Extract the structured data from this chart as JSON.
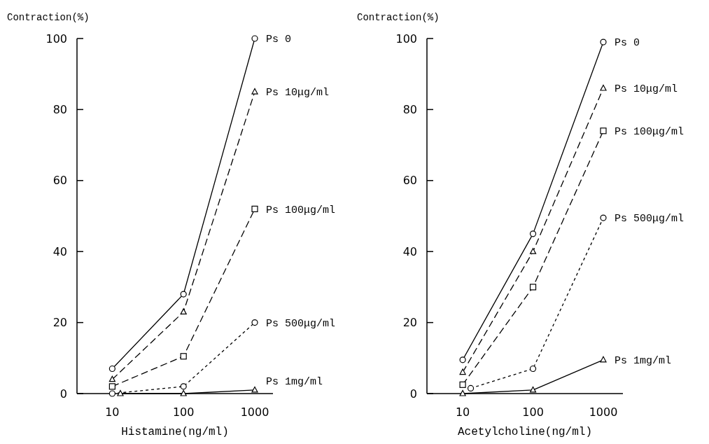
{
  "chart_data": [
    {
      "type": "line",
      "xlabel": "Histamine(ng/ml)",
      "ylabel": "Contraction(%)",
      "log": "x",
      "xlim": [
        3.2,
        1800
      ],
      "xticks": [
        10,
        100,
        1000
      ],
      "ylim": [
        0,
        100
      ],
      "yticks": [
        0,
        20,
        40,
        60,
        80,
        100
      ],
      "grid": false,
      "series": [
        {
          "name": "Ps 0",
          "color": "#000000",
          "x": [
            10,
            100,
            1000
          ],
          "values": [
            7,
            28,
            100
          ],
          "marker": "circle",
          "line_style": "solid"
        },
        {
          "name": "Ps 10μg/ml",
          "color": "#000000",
          "x": [
            10,
            100,
            1000
          ],
          "values": [
            4,
            23,
            85
          ],
          "marker": "triangle",
          "line_style": "dashed"
        },
        {
          "name": "Ps 100μg/ml",
          "color": "#000000",
          "x": [
            10,
            100,
            1000
          ],
          "values": [
            2,
            10.5,
            52
          ],
          "marker": "square",
          "line_style": "dashed"
        },
        {
          "name": "Ps 500μg/ml",
          "color": "#000000",
          "x": [
            10,
            100,
            1000
          ],
          "values": [
            0,
            2,
            20
          ],
          "marker": "circle",
          "line_style": "dotted"
        },
        {
          "name": "Ps 1mg/ml",
          "color": "#000000",
          "x": [
            13,
            100,
            1000
          ],
          "values": [
            0,
            0,
            1
          ],
          "marker": "triangle",
          "line_style": "solid"
        }
      ]
    },
    {
      "type": "line",
      "xlabel": "Acetylcholine(ng/ml)",
      "ylabel": "Contraction(%)",
      "log": "x",
      "xlim": [
        3.1,
        1900
      ],
      "xticks": [
        10,
        100,
        1000
      ],
      "ylim": [
        0,
        100
      ],
      "yticks": [
        0,
        20,
        40,
        60,
        80,
        100
      ],
      "grid": false,
      "series": [
        {
          "name": "Ps 0",
          "color": "#000000",
          "x": [
            10,
            100,
            1000
          ],
          "values": [
            9.5,
            45,
            99
          ],
          "marker": "circle",
          "line_style": "solid"
        },
        {
          "name": "Ps 10μg/ml",
          "color": "#000000",
          "x": [
            10,
            100,
            1000
          ],
          "values": [
            6,
            40,
            86
          ],
          "marker": "triangle",
          "line_style": "dashed"
        },
        {
          "name": "Ps 100μg/ml",
          "color": "#000000",
          "x": [
            10,
            100,
            1000
          ],
          "values": [
            2.5,
            30,
            74
          ],
          "marker": "square",
          "line_style": "dashed"
        },
        {
          "name": "Ps 500μg/ml",
          "color": "#000000",
          "x": [
            13,
            100,
            1000
          ],
          "values": [
            1.5,
            7,
            49.5
          ],
          "marker": "circle",
          "line_style": "dotted"
        },
        {
          "name": "Ps 1mg/ml",
          "color": "#000000",
          "x": [
            10,
            100,
            1000
          ],
          "values": [
            0,
            1,
            9.5
          ],
          "marker": "triangle",
          "line_style": "solid"
        }
      ]
    }
  ]
}
